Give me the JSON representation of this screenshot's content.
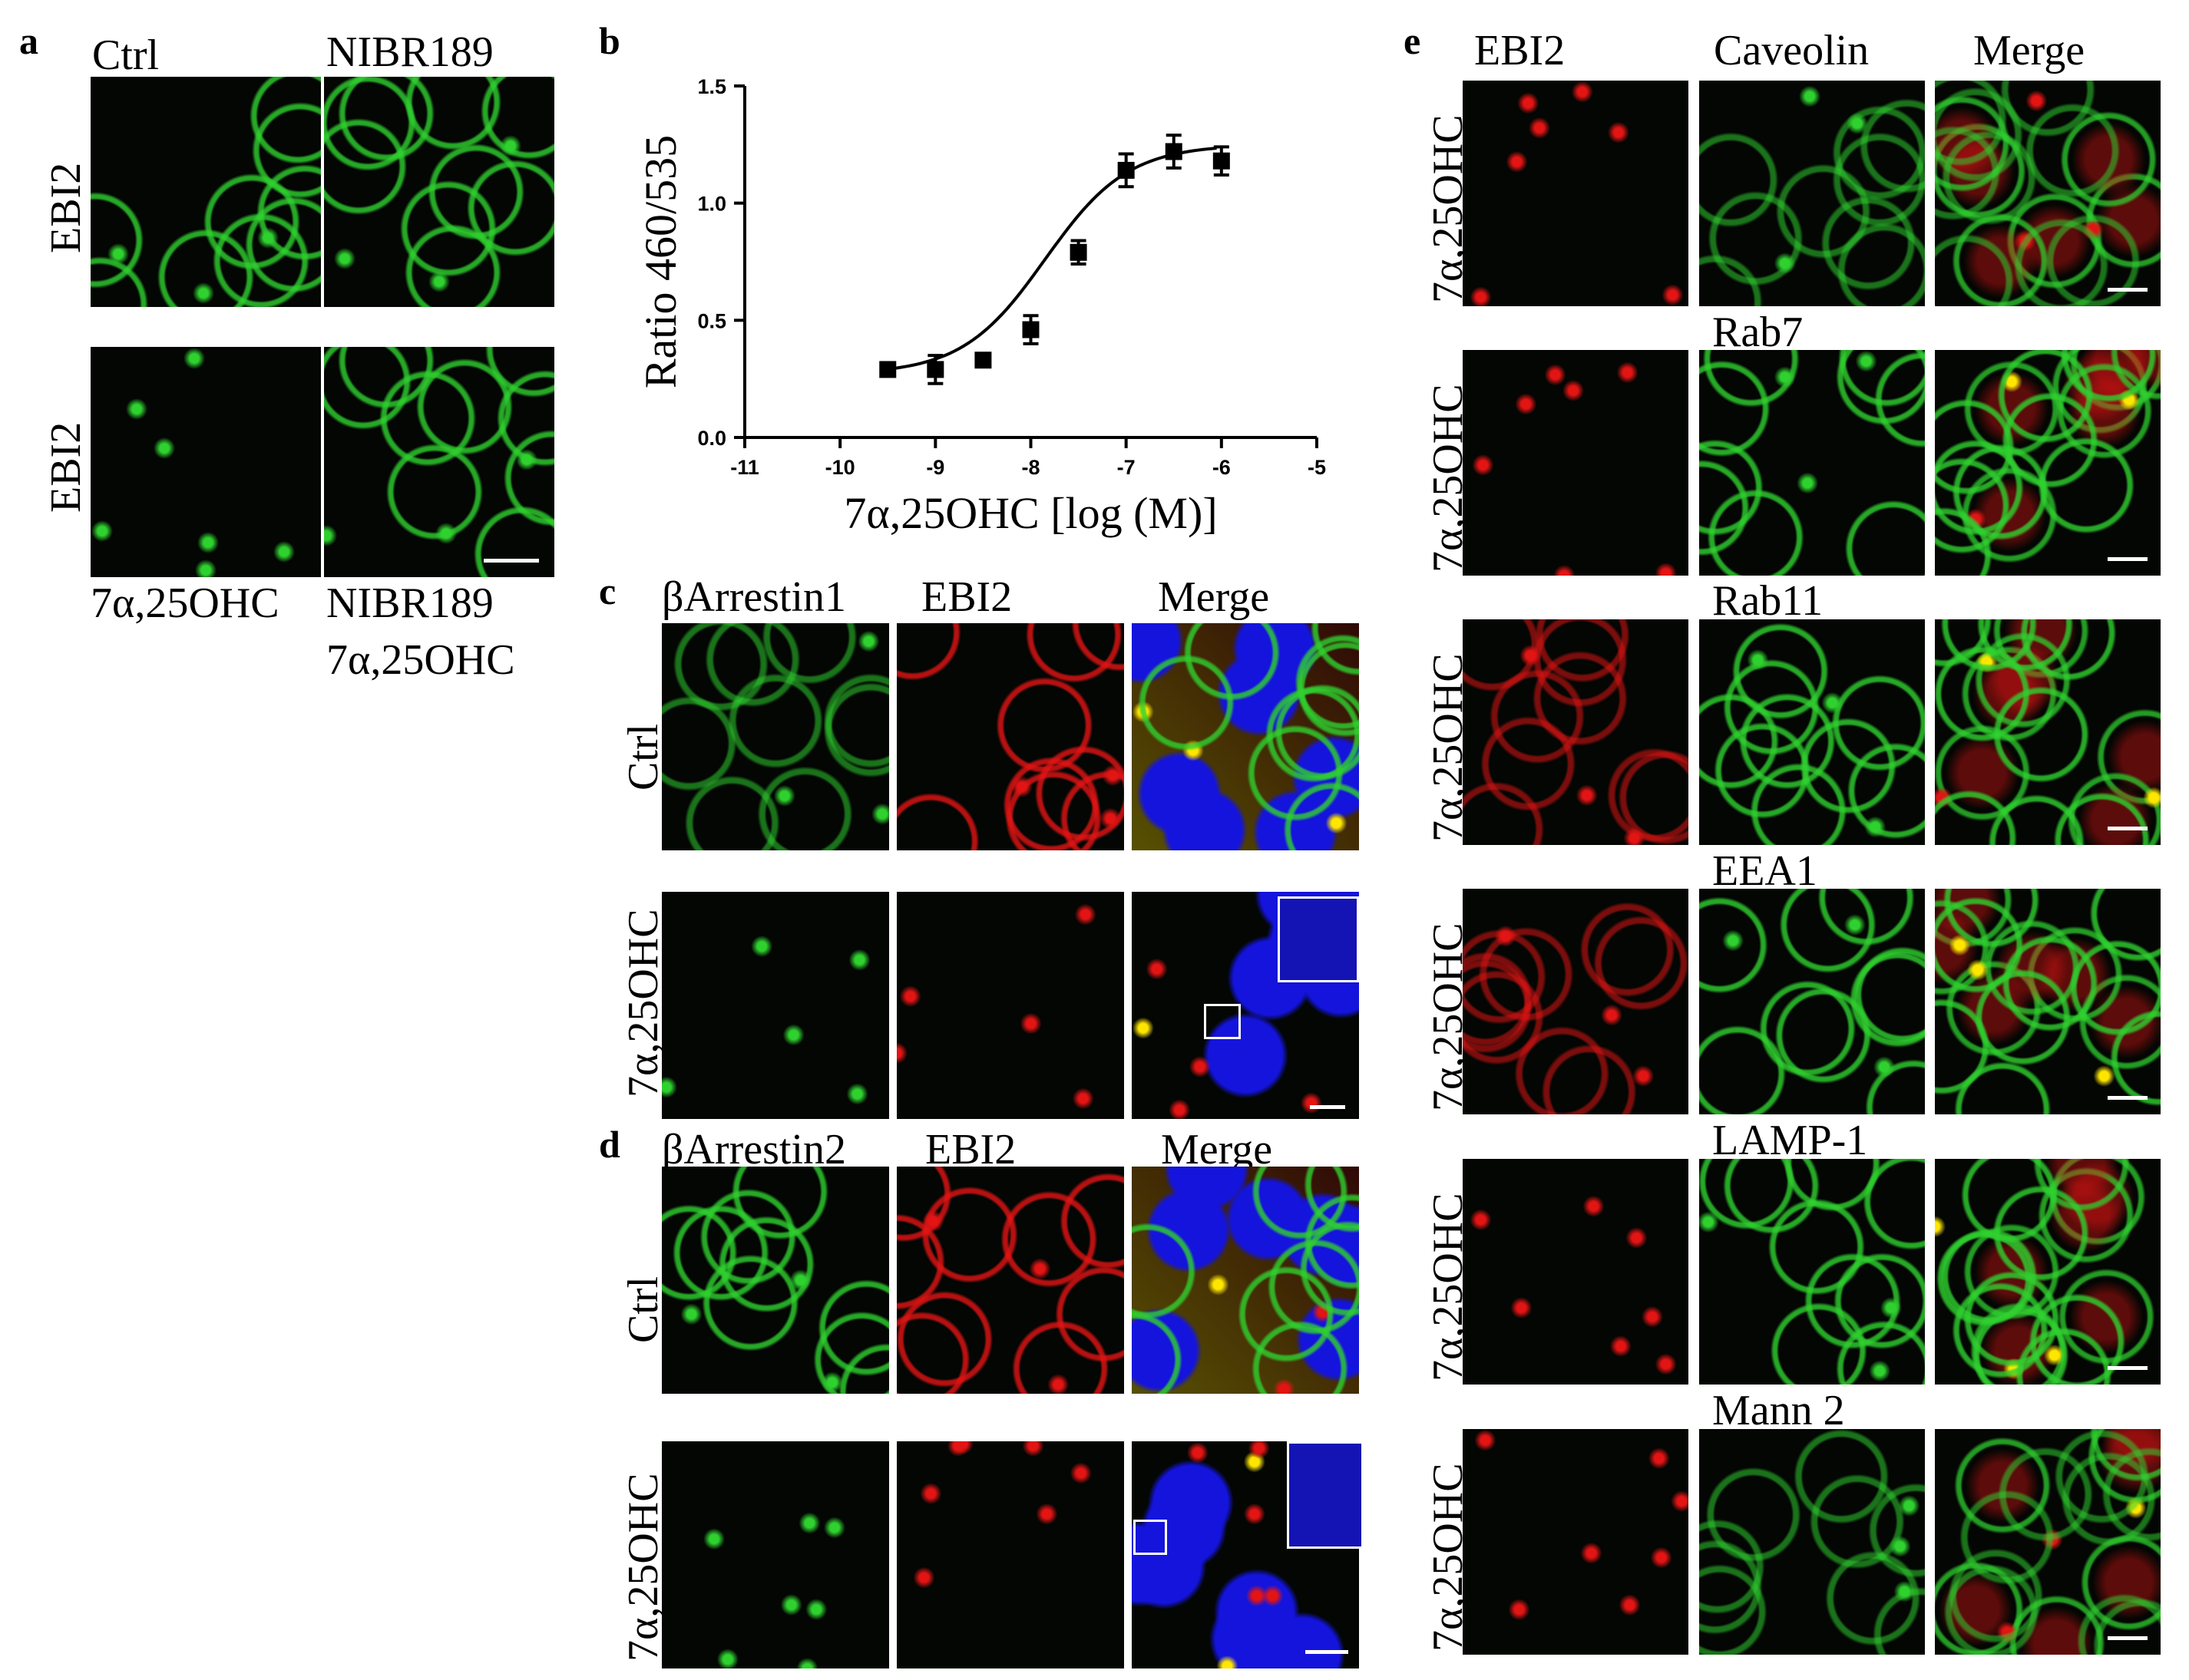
{
  "panels": {
    "a": {
      "letter": "a",
      "cols": [
        "Ctrl",
        "NIBR189"
      ],
      "rows": [
        "EBI2",
        "EBI2"
      ],
      "bottom_left": "7α,25OHC",
      "bottom_right_1": "NIBR189",
      "bottom_right_2": "7α,25OHC"
    },
    "b": {
      "letter": "b"
    },
    "c": {
      "letter": "c",
      "cols": [
        "βArrestin1",
        "EBI2",
        "Merge"
      ],
      "rows": [
        "Ctrl",
        "7α,25OHC"
      ]
    },
    "d": {
      "letter": "d",
      "cols": [
        "βArrestin2",
        "EBI2",
        "Merge"
      ],
      "rows": [
        "Ctrl",
        "7α,25OHC"
      ]
    },
    "e": {
      "letter": "e",
      "cols": [
        "EBI2",
        "Caveolin",
        "Merge"
      ],
      "markers": [
        "Rab7",
        "Rab11",
        "EEA1",
        "LAMP-1",
        "Mann 2"
      ],
      "row_label": "7α,25OHC"
    }
  },
  "colors": {
    "green": "#2fd12f",
    "red": "#e21414",
    "blue": "#1414dc",
    "yellow": "#ffe600"
  },
  "chart_data": {
    "type": "scatter",
    "fit": "sigmoidal dose-response",
    "ylabel": "Ratio 460/535",
    "xlabel": "7α,25OHC [log (M)]",
    "xlim": [
      -11,
      -5
    ],
    "ylim": [
      0.0,
      1.5
    ],
    "x_ticks": [
      "-11",
      "-10",
      "-9",
      "-8",
      "-7",
      "-6",
      "-5"
    ],
    "y_ticks": [
      "0.0",
      "0.5",
      "1.0",
      "1.5"
    ],
    "points": [
      {
        "x": -9.5,
        "y": 0.29,
        "err": 0.02
      },
      {
        "x": -9.0,
        "y": 0.29,
        "err": 0.06
      },
      {
        "x": -8.5,
        "y": 0.33,
        "err": 0.02
      },
      {
        "x": -8.0,
        "y": 0.46,
        "err": 0.06
      },
      {
        "x": -7.5,
        "y": 0.79,
        "err": 0.05
      },
      {
        "x": -7.0,
        "y": 1.14,
        "err": 0.07
      },
      {
        "x": -6.5,
        "y": 1.22,
        "err": 0.07
      },
      {
        "x": -6.0,
        "y": 1.18,
        "err": 0.06
      }
    ]
  }
}
